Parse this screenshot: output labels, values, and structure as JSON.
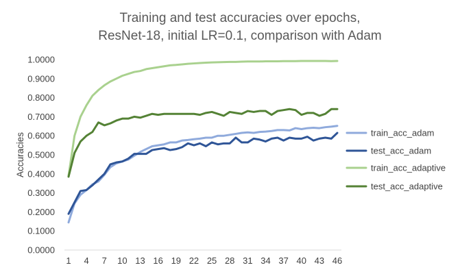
{
  "chart_data": {
    "type": "line",
    "title_lines": [
      "Training and test accuracies over epochs,",
      "ResNet-18, initial LR=0.1, comparison with Adam"
    ],
    "xlabel": "",
    "ylabel": "Accuracies",
    "ylim": [
      0,
      1
    ],
    "y_ticks": [
      "0.0000",
      "0.1000",
      "0.2000",
      "0.3000",
      "0.4000",
      "0.5000",
      "0.6000",
      "0.7000",
      "0.8000",
      "0.9000",
      "1.0000"
    ],
    "x_ticks": [
      "1",
      "4",
      "7",
      "10",
      "13",
      "16",
      "19",
      "22",
      "25",
      "28",
      "31",
      "34",
      "37",
      "40",
      "43",
      "46"
    ],
    "x": [
      1,
      2,
      3,
      4,
      5,
      6,
      7,
      8,
      9,
      10,
      11,
      12,
      13,
      14,
      15,
      16,
      17,
      18,
      19,
      20,
      21,
      22,
      23,
      24,
      25,
      26,
      27,
      28,
      29,
      30,
      31,
      32,
      33,
      34,
      35,
      36,
      37,
      38,
      39,
      40,
      41,
      42,
      43,
      44,
      45,
      46
    ],
    "grid": false,
    "legend_position": "right",
    "series": [
      {
        "name": "train_acc_adam",
        "color": "#8FAADC",
        "values": [
          0.145,
          0.245,
          0.29,
          0.315,
          0.345,
          0.36,
          0.395,
          0.435,
          0.455,
          0.465,
          0.475,
          0.495,
          0.515,
          0.53,
          0.545,
          0.55,
          0.555,
          0.565,
          0.565,
          0.575,
          0.578,
          0.582,
          0.585,
          0.59,
          0.59,
          0.6,
          0.6,
          0.605,
          0.61,
          0.615,
          0.618,
          0.615,
          0.62,
          0.622,
          0.625,
          0.63,
          0.63,
          0.628,
          0.64,
          0.635,
          0.64,
          0.642,
          0.64,
          0.645,
          0.648,
          0.652
        ]
      },
      {
        "name": "test_acc_adam",
        "color": "#2F5597",
        "values": [
          0.19,
          0.25,
          0.31,
          0.315,
          0.34,
          0.37,
          0.4,
          0.45,
          0.46,
          0.465,
          0.48,
          0.505,
          0.505,
          0.505,
          0.525,
          0.53,
          0.535,
          0.525,
          0.53,
          0.54,
          0.56,
          0.55,
          0.56,
          0.545,
          0.565,
          0.555,
          0.56,
          0.56,
          0.59,
          0.565,
          0.565,
          0.585,
          0.58,
          0.57,
          0.585,
          0.59,
          0.575,
          0.59,
          0.585,
          0.585,
          0.595,
          0.575,
          0.585,
          0.59,
          0.585,
          0.615
        ]
      },
      {
        "name": "train_acc_adaptive",
        "color": "#A9D18E",
        "values": [
          0.39,
          0.6,
          0.7,
          0.76,
          0.81,
          0.84,
          0.865,
          0.885,
          0.9,
          0.915,
          0.925,
          0.935,
          0.94,
          0.95,
          0.955,
          0.96,
          0.965,
          0.97,
          0.972,
          0.975,
          0.978,
          0.98,
          0.982,
          0.984,
          0.985,
          0.986,
          0.987,
          0.988,
          0.988,
          0.989,
          0.99,
          0.99,
          0.99,
          0.991,
          0.991,
          0.991,
          0.992,
          0.992,
          0.992,
          0.993,
          0.993,
          0.993,
          0.993,
          0.993,
          0.992,
          0.993
        ]
      },
      {
        "name": "test_acc_adaptive",
        "color": "#548235",
        "values": [
          0.385,
          0.51,
          0.57,
          0.6,
          0.62,
          0.67,
          0.655,
          0.665,
          0.68,
          0.69,
          0.69,
          0.7,
          0.695,
          0.705,
          0.715,
          0.71,
          0.715,
          0.715,
          0.715,
          0.715,
          0.715,
          0.715,
          0.71,
          0.72,
          0.725,
          0.715,
          0.705,
          0.725,
          0.72,
          0.715,
          0.73,
          0.725,
          0.73,
          0.73,
          0.71,
          0.73,
          0.735,
          0.74,
          0.735,
          0.71,
          0.72,
          0.72,
          0.705,
          0.715,
          0.74,
          0.74
        ]
      }
    ]
  }
}
